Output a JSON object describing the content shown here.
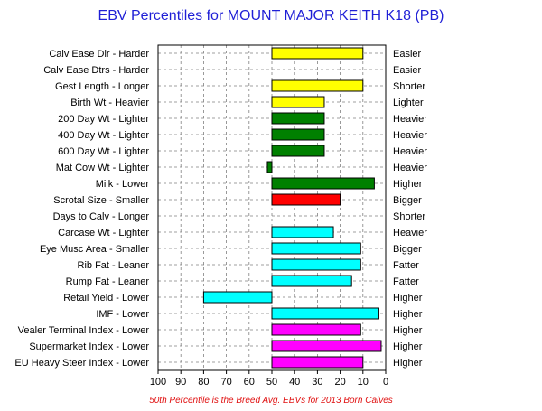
{
  "chart_data": {
    "type": "bar",
    "orientation": "horizontal",
    "title": "EBV Percentiles for MOUNT MAJOR KEITH K18 (PB)",
    "footnote": "50th Percentile is the Breed Avg. EBVs for 2013 Born Calves",
    "xlim": [
      100,
      0
    ],
    "x_reversed": true,
    "baseline": 50,
    "xticks": [
      "100",
      "90",
      "80",
      "70",
      "60",
      "50",
      "40",
      "30",
      "20",
      "10",
      "0"
    ],
    "grid": true,
    "colors": {
      "yellow": "#ffff00",
      "green": "#008000",
      "red": "#ff0000",
      "cyan": "#00ffff",
      "magenta": "#ff00ff"
    },
    "traits": [
      {
        "left": "Calv Ease Dir - Harder",
        "right": "Easier",
        "value": 10,
        "color": "yellow"
      },
      {
        "left": "Calv Ease Dtrs - Harder",
        "right": "Easier",
        "value": null,
        "color": "yellow"
      },
      {
        "left": "Gest Length - Longer",
        "right": "Shorter",
        "value": 10,
        "color": "yellow"
      },
      {
        "left": "Birth Wt - Heavier",
        "right": "Lighter",
        "value": 27,
        "color": "yellow"
      },
      {
        "left": "200 Day Wt - Lighter",
        "right": "Heavier",
        "value": 27,
        "color": "green"
      },
      {
        "left": "400 Day Wt - Lighter",
        "right": "Heavier",
        "value": 27,
        "color": "green"
      },
      {
        "left": "600 Day Wt - Lighter",
        "right": "Heavier",
        "value": 27,
        "color": "green"
      },
      {
        "left": "Mat Cow Wt - Lighter",
        "right": "Heavier",
        "value": 52,
        "color": "green"
      },
      {
        "left": "Milk - Lower",
        "right": "Higher",
        "value": 5,
        "color": "green"
      },
      {
        "left": "Scrotal Size - Smaller",
        "right": "Bigger",
        "value": 20,
        "color": "red"
      },
      {
        "left": "Days to Calv - Longer",
        "right": "Shorter",
        "value": null,
        "color": "red"
      },
      {
        "left": "Carcase Wt - Lighter",
        "right": "Heavier",
        "value": 23,
        "color": "cyan"
      },
      {
        "left": "Eye Musc Area - Smaller",
        "right": "Bigger",
        "value": 11,
        "color": "cyan"
      },
      {
        "left": "Rib Fat - Leaner",
        "right": "Fatter",
        "value": 11,
        "color": "cyan"
      },
      {
        "left": "Rump Fat - Leaner",
        "right": "Fatter",
        "value": 15,
        "color": "cyan"
      },
      {
        "left": "Retail Yield - Lower",
        "right": "Higher",
        "value": 80,
        "color": "cyan"
      },
      {
        "left": "IMF - Lower",
        "right": "Higher",
        "value": 3,
        "color": "cyan"
      },
      {
        "left": "Vealer Terminal Index - Lower",
        "right": "Higher",
        "value": 11,
        "color": "magenta"
      },
      {
        "left": "Supermarket Index - Lower",
        "right": "Higher",
        "value": 2,
        "color": "magenta"
      },
      {
        "left": "EU Heavy Steer Index - Lower",
        "right": "Higher",
        "value": 10,
        "color": "magenta"
      }
    ]
  }
}
